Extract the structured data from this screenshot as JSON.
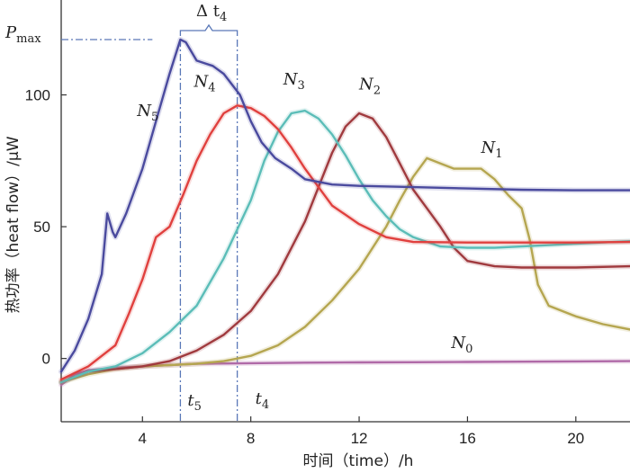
{
  "chart_data": {
    "type": "line",
    "xlabel": "时间（time）/h",
    "ylabel": "热功率（heat flow）/μW",
    "xlim": [
      1,
      22
    ],
    "ylim": [
      -24,
      136
    ],
    "x_ticks": [
      4,
      8,
      12,
      16,
      20
    ],
    "y_ticks": [
      0,
      50,
      100
    ],
    "grid": false,
    "series": [
      {
        "name": "N5",
        "label_main": "N",
        "label_sub": "5",
        "color": "#4a4a9e",
        "points": [
          [
            1,
            -5
          ],
          [
            1.5,
            3
          ],
          [
            2,
            15
          ],
          [
            2.5,
            32
          ],
          [
            2.7,
            55
          ],
          [
            2.9,
            48
          ],
          [
            3,
            46
          ],
          [
            3.4,
            55
          ],
          [
            4,
            72
          ],
          [
            4.5,
            90
          ],
          [
            5,
            108
          ],
          [
            5.4,
            121
          ],
          [
            5.6,
            120
          ],
          [
            6,
            113
          ],
          [
            6.3,
            112
          ],
          [
            6.6,
            111
          ],
          [
            7,
            108
          ],
          [
            7.6,
            100
          ],
          [
            8,
            90
          ],
          [
            8.4,
            82
          ],
          [
            8.9,
            76
          ],
          [
            9.5,
            72
          ],
          [
            10,
            68
          ],
          [
            11,
            66
          ],
          [
            12,
            65.5
          ],
          [
            14,
            65
          ],
          [
            16,
            64.5
          ],
          [
            18,
            64
          ],
          [
            20,
            63.8
          ],
          [
            22,
            63.8
          ]
        ]
      },
      {
        "name": "N4",
        "label_main": "N",
        "label_sub": "4",
        "color": "#e0403e",
        "points": [
          [
            1,
            -8
          ],
          [
            2,
            -3
          ],
          [
            3,
            5
          ],
          [
            3.5,
            17
          ],
          [
            4,
            30
          ],
          [
            4.5,
            46
          ],
          [
            5,
            50
          ],
          [
            5.5,
            62
          ],
          [
            6,
            75
          ],
          [
            6.5,
            85
          ],
          [
            7,
            93
          ],
          [
            7.5,
            96
          ],
          [
            8,
            95
          ],
          [
            8.5,
            92
          ],
          [
            9,
            87
          ],
          [
            9.5,
            80
          ],
          [
            10,
            72
          ],
          [
            10.5,
            65
          ],
          [
            11,
            58
          ],
          [
            12,
            51
          ],
          [
            13,
            46
          ],
          [
            14,
            44.2
          ],
          [
            16,
            44
          ],
          [
            18,
            44
          ],
          [
            20,
            44
          ],
          [
            22,
            44.2
          ]
        ]
      },
      {
        "name": "N3",
        "label_main": "N",
        "label_sub": "3",
        "color": "#5bbdb8",
        "points": [
          [
            1,
            -9
          ],
          [
            2,
            -5
          ],
          [
            3,
            -3
          ],
          [
            4,
            2
          ],
          [
            5,
            10
          ],
          [
            6,
            20
          ],
          [
            7,
            38
          ],
          [
            8,
            60
          ],
          [
            8.5,
            75
          ],
          [
            9,
            86
          ],
          [
            9.5,
            93
          ],
          [
            10,
            94
          ],
          [
            10.5,
            91
          ],
          [
            11,
            85
          ],
          [
            11.5,
            77
          ],
          [
            12,
            68
          ],
          [
            12.5,
            60
          ],
          [
            13,
            54
          ],
          [
            13.5,
            49
          ],
          [
            14,
            46
          ],
          [
            15,
            42.5
          ],
          [
            16,
            42
          ],
          [
            17,
            42
          ],
          [
            18,
            42.5
          ],
          [
            20,
            43.5
          ],
          [
            22,
            44.5
          ]
        ]
      },
      {
        "name": "N2",
        "label_main": "N",
        "label_sub": "2",
        "color": "#a03a3e",
        "points": [
          [
            1,
            -9
          ],
          [
            2,
            -5
          ],
          [
            3,
            -4
          ],
          [
            4,
            -3
          ],
          [
            5,
            -1
          ],
          [
            6,
            3
          ],
          [
            7,
            9
          ],
          [
            8,
            18
          ],
          [
            9,
            32
          ],
          [
            10,
            52
          ],
          [
            10.5,
            65
          ],
          [
            11,
            78
          ],
          [
            11.5,
            88
          ],
          [
            12,
            93
          ],
          [
            12.5,
            91
          ],
          [
            13,
            84
          ],
          [
            13.5,
            74
          ],
          [
            14,
            64
          ],
          [
            14.5,
            57
          ],
          [
            15,
            50
          ],
          [
            15.5,
            42
          ],
          [
            16,
            37
          ],
          [
            17,
            35
          ],
          [
            18,
            34.5
          ],
          [
            20,
            34.5
          ],
          [
            22,
            35
          ]
        ]
      },
      {
        "name": "N1",
        "label_main": "N",
        "label_sub": "1",
        "color": "#b5a650",
        "points": [
          [
            1,
            -9
          ],
          [
            2,
            -6
          ],
          [
            3,
            -4
          ],
          [
            4,
            -3
          ],
          [
            5,
            -2.5
          ],
          [
            6,
            -2
          ],
          [
            7,
            -1
          ],
          [
            8,
            1
          ],
          [
            9,
            5
          ],
          [
            10,
            12
          ],
          [
            11,
            22
          ],
          [
            12,
            34
          ],
          [
            13,
            50
          ],
          [
            13.5,
            60
          ],
          [
            14,
            69
          ],
          [
            14.5,
            76
          ],
          [
            15,
            74
          ],
          [
            15.5,
            72
          ],
          [
            16,
            72
          ],
          [
            16.5,
            72
          ],
          [
            17,
            68
          ],
          [
            17.5,
            62
          ],
          [
            18,
            57
          ],
          [
            18.3,
            45
          ],
          [
            18.6,
            28
          ],
          [
            19,
            20
          ],
          [
            20,
            16
          ],
          [
            21,
            13
          ],
          [
            22,
            11
          ]
        ]
      },
      {
        "name": "N0",
        "label_main": "N",
        "label_sub": "0",
        "color": "#b06aa8",
        "points": [
          [
            1,
            -10
          ],
          [
            1.5,
            -6
          ],
          [
            2,
            -4.5
          ],
          [
            3,
            -3.5
          ],
          [
            4,
            -3
          ],
          [
            5,
            -2.5
          ],
          [
            6,
            -2
          ],
          [
            8,
            -1.8
          ],
          [
            10,
            -1.6
          ],
          [
            12,
            -1.5
          ],
          [
            14,
            -1.4
          ],
          [
            16,
            -1.3
          ],
          [
            18,
            -1.2
          ],
          [
            20,
            -1.1
          ],
          [
            22,
            -1
          ]
        ]
      }
    ],
    "annotations": {
      "pmax": {
        "main": "P",
        "sub": "max",
        "value": 121
      },
      "delta_t4": {
        "main": "Δ t",
        "sub": "4"
      },
      "t5": {
        "main": "t",
        "sub": "5",
        "x": 5.4
      },
      "t4": {
        "main": "t",
        "sub": "4",
        "x": 7.5
      }
    }
  }
}
